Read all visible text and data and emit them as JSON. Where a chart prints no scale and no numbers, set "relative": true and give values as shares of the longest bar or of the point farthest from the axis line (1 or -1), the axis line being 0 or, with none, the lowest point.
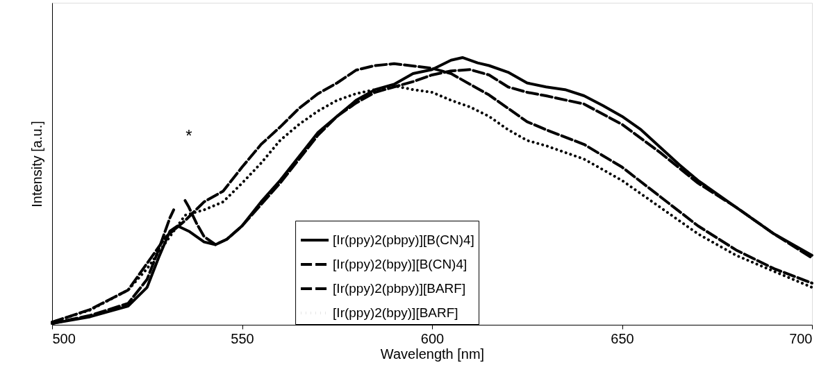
{
  "chart_data": {
    "type": "line",
    "xlabel": "Wavelength [nm]",
    "ylabel": "Intensity [a.u.]",
    "relative": true,
    "xlim": [
      500,
      700
    ],
    "xticks": [
      500,
      550,
      600,
      650,
      700
    ],
    "grid": false,
    "legend": "bottom",
    "marker": "none",
    "annotations": [
      "*"
    ],
    "series": [
      {
        "name": "[Ir(ppy)2(pbpy)][B(CN)4]",
        "color": "#000000",
        "line_style": "solid",
        "x": [
          500,
          510,
          520,
          525,
          528,
          531,
          533,
          536,
          540,
          543,
          546,
          550,
          555,
          560,
          565,
          570,
          575,
          580,
          585,
          590,
          595,
          600,
          605,
          608,
          612,
          615,
          620,
          625,
          630,
          635,
          640,
          645,
          650,
          655,
          660,
          665,
          670,
          675,
          680,
          690,
          700
        ],
        "values": [
          0.005,
          0.03,
          0.07,
          0.14,
          0.25,
          0.35,
          0.37,
          0.35,
          0.31,
          0.3,
          0.32,
          0.37,
          0.46,
          0.54,
          0.63,
          0.72,
          0.78,
          0.84,
          0.88,
          0.9,
          0.94,
          0.955,
          0.99,
          1.0,
          0.98,
          0.97,
          0.945,
          0.905,
          0.89,
          0.88,
          0.857,
          0.82,
          0.78,
          0.73,
          0.665,
          0.6,
          0.54,
          0.49,
          0.44,
          0.34,
          0.26
        ]
      },
      {
        "name": "[Ir(ppy)2(bpy)][B(CN)4]",
        "color": "#000000",
        "line_style": "dashed",
        "x": [
          500,
          510,
          520,
          525,
          530,
          535,
          540,
          545,
          550,
          555,
          560,
          565,
          570,
          575,
          580,
          585,
          590,
          600,
          605,
          610,
          615,
          620,
          625,
          630,
          640,
          650,
          660,
          670,
          680,
          690,
          700
        ],
        "values": [
          0.01,
          0.057,
          0.13,
          0.23,
          0.33,
          0.39,
          0.46,
          0.5,
          0.59,
          0.675,
          0.74,
          0.81,
          0.865,
          0.905,
          0.953,
          0.97,
          0.977,
          0.96,
          0.94,
          0.9,
          0.86,
          0.81,
          0.76,
          0.73,
          0.675,
          0.59,
          0.48,
          0.37,
          0.28,
          0.21,
          0.156
        ]
      },
      {
        "name": "[Ir(ppy)2(pbpy)][BARF]",
        "color": "#000000",
        "line_style": "dashed",
        "x": [
          500,
          510,
          520,
          525,
          528,
          531,
          532,
          533,
          535,
          536,
          538,
          540,
          543,
          546,
          550,
          555,
          560,
          565,
          570,
          575,
          580,
          585,
          590,
          595,
          600,
          605,
          610,
          615,
          620,
          625,
          630,
          640,
          650,
          660,
          670,
          680,
          690,
          700
        ],
        "values": [
          0.005,
          0.035,
          0.08,
          0.17,
          0.28,
          0.4,
          0.43,
          null,
          0.465,
          0.44,
          0.38,
          0.33,
          0.3,
          0.32,
          0.37,
          0.45,
          0.53,
          0.62,
          0.71,
          0.78,
          0.83,
          0.87,
          0.89,
          0.91,
          0.935,
          0.95,
          0.955,
          0.935,
          0.89,
          0.87,
          0.857,
          0.826,
          0.75,
          0.645,
          0.53,
          0.44,
          0.34,
          0.25
        ]
      },
      {
        "name": "[Ir(ppy)2(bpy)][BARF]",
        "color": "#000000",
        "line_style": "dotted",
        "x": [
          500,
          510,
          520,
          525,
          530,
          535,
          540,
          545,
          550,
          555,
          560,
          565,
          570,
          575,
          580,
          585,
          590,
          595,
          600,
          605,
          610,
          615,
          620,
          625,
          630,
          640,
          650,
          660,
          670,
          680,
          690,
          700
        ],
        "values": [
          0.01,
          0.055,
          0.13,
          0.21,
          0.31,
          0.41,
          0.43,
          0.46,
          0.53,
          0.605,
          0.69,
          0.75,
          0.8,
          0.84,
          0.865,
          0.88,
          0.894,
          0.88,
          0.87,
          0.84,
          0.815,
          0.78,
          0.73,
          0.69,
          0.67,
          0.62,
          0.54,
          0.44,
          0.34,
          0.26,
          0.2,
          0.14
        ]
      }
    ]
  }
}
